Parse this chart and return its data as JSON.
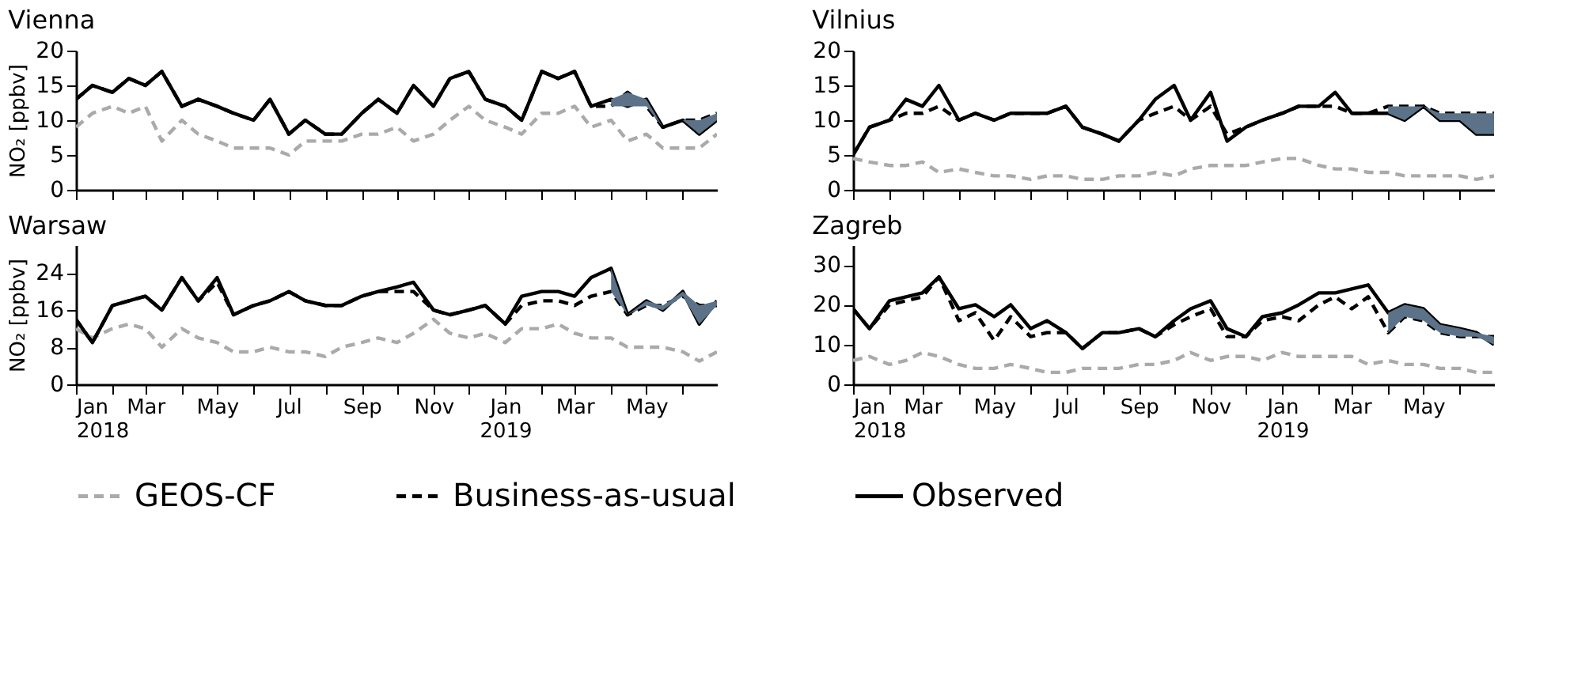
{
  "chart_data": [
    {
      "type": "line",
      "title": "Vienna",
      "ylabel": "NO₂ [ppbv]",
      "legend": "bottom",
      "grid": false,
      "tick_labels": "y",
      "x": [
        "2018-01-01",
        "2018-01-15",
        "2018-02-01",
        "2018-02-15",
        "2018-03-01",
        "2018-03-15",
        "2018-04-01",
        "2018-04-15",
        "2018-05-01",
        "2018-05-15",
        "2018-06-01",
        "2018-06-15",
        "2018-07-01",
        "2018-07-15",
        "2018-08-01",
        "2018-08-15",
        "2018-09-01",
        "2018-09-15",
        "2018-10-01",
        "2018-10-15",
        "2018-11-01",
        "2018-11-15",
        "2018-12-01",
        "2018-12-15",
        "2019-01-01",
        "2019-01-15",
        "2019-02-01",
        "2019-02-15",
        "2019-03-01",
        "2019-03-15",
        "2019-04-01",
        "2019-04-15",
        "2019-05-01",
        "2019-05-15",
        "2019-06-01",
        "2019-06-15",
        "2019-06-30"
      ],
      "xlim": [
        "2018-01-01",
        "2019-06-30"
      ],
      "xticks": [
        {
          "value": "2018-01-01",
          "label": "Jan 2018"
        },
        {
          "value": "2018-02-01",
          "label": null
        },
        {
          "value": "2018-03-01",
          "label": "Mar"
        },
        {
          "value": "2018-04-01",
          "label": null
        },
        {
          "value": "2018-05-01",
          "label": "May"
        },
        {
          "value": "2018-06-01",
          "label": null
        },
        {
          "value": "2018-07-01",
          "label": "Jul"
        },
        {
          "value": "2018-08-01",
          "label": null
        },
        {
          "value": "2018-09-01",
          "label": "Sep"
        },
        {
          "value": "2018-10-01",
          "label": null
        },
        {
          "value": "2018-11-01",
          "label": "Nov"
        },
        {
          "value": "2018-12-01",
          "label": null
        },
        {
          "value": "2019-01-01",
          "label": "Jan 2019"
        },
        {
          "value": "2019-02-01",
          "label": null
        },
        {
          "value": "2019-03-01",
          "label": "Mar"
        },
        {
          "value": "2019-04-01",
          "label": null
        },
        {
          "value": "2019-05-01",
          "label": "May"
        },
        {
          "value": "2019-06-01",
          "label": null
        }
      ],
      "ylim": [
        0,
        20
      ],
      "yticks": [
        0,
        5,
        10,
        15,
        20
      ],
      "series": [
        {
          "name": "GEOS-CF",
          "color": "#aaaaaa",
          "line_style": "dashed",
          "values": [
            9,
            11,
            12,
            11,
            12,
            7,
            10,
            8,
            7,
            6,
            6,
            6,
            5,
            7,
            7,
            7,
            8,
            8,
            9,
            7,
            8,
            10,
            12,
            10,
            9,
            8,
            11,
            11,
            12,
            9,
            10,
            7,
            8,
            6,
            6,
            6,
            8
          ]
        },
        {
          "name": "Business-as-usual",
          "color": "#000000",
          "line_style": "dashed",
          "values": [
            13,
            15,
            14,
            16,
            15,
            17,
            12,
            13,
            12,
            11,
            10,
            13,
            8,
            10,
            8,
            8,
            11,
            13,
            11,
            15,
            12,
            16,
            17,
            13,
            12,
            10,
            17,
            16,
            17,
            12,
            12,
            14,
            12,
            9,
            10,
            10,
            11
          ]
        },
        {
          "name": "Observed",
          "color": "#000000",
          "line_style": "solid",
          "values": [
            13,
            15,
            14,
            16,
            15,
            17,
            12,
            13,
            12,
            11,
            10,
            13,
            8,
            10,
            8,
            8,
            11,
            13,
            11,
            15,
            12,
            16,
            17,
            13,
            12,
            10,
            17,
            16,
            17,
            12,
            13,
            12,
            13,
            9,
            10,
            8,
            10
          ],
          "lower": [
            null,
            null,
            null,
            null,
            null,
            null,
            null,
            null,
            null,
            null,
            null,
            null,
            null,
            null,
            null,
            null,
            null,
            null,
            null,
            null,
            null,
            null,
            null,
            null,
            null,
            null,
            null,
            null,
            null,
            null,
            12,
            12,
            12,
            9,
            10,
            8,
            10
          ],
          "upper": [
            null,
            null,
            null,
            null,
            null,
            null,
            null,
            null,
            null,
            null,
            null,
            null,
            null,
            null,
            null,
            null,
            null,
            null,
            null,
            null,
            null,
            null,
            null,
            null,
            null,
            null,
            null,
            null,
            null,
            null,
            13,
            14,
            13,
            9,
            10,
            10,
            11
          ]
        }
      ]
    },
    {
      "type": "line",
      "title": "Vilnius",
      "legend": "bottom",
      "grid": false,
      "tick_labels": "y",
      "x": [
        "2018-01-01",
        "2018-01-15",
        "2018-02-01",
        "2018-02-15",
        "2018-03-01",
        "2018-03-15",
        "2018-04-01",
        "2018-04-15",
        "2018-05-01",
        "2018-05-15",
        "2018-06-01",
        "2018-06-15",
        "2018-07-01",
        "2018-07-15",
        "2018-08-01",
        "2018-08-15",
        "2018-09-01",
        "2018-09-15",
        "2018-10-01",
        "2018-10-15",
        "2018-11-01",
        "2018-11-15",
        "2018-12-01",
        "2018-12-15",
        "2019-01-01",
        "2019-01-15",
        "2019-02-01",
        "2019-02-15",
        "2019-03-01",
        "2019-03-15",
        "2019-04-01",
        "2019-04-15",
        "2019-05-01",
        "2019-05-15",
        "2019-06-01",
        "2019-06-15",
        "2019-06-30"
      ],
      "xlim": [
        "2018-01-01",
        "2019-06-30"
      ],
      "xticks": [
        {
          "value": "2018-01-01",
          "label": "Jan 2018"
        },
        {
          "value": "2018-02-01",
          "label": null
        },
        {
          "value": "2018-03-01",
          "label": "Mar"
        },
        {
          "value": "2018-04-01",
          "label": null
        },
        {
          "value": "2018-05-01",
          "label": "May"
        },
        {
          "value": "2018-06-01",
          "label": null
        },
        {
          "value": "2018-07-01",
          "label": "Jul"
        },
        {
          "value": "2018-08-01",
          "label": null
        },
        {
          "value": "2018-09-01",
          "label": "Sep"
        },
        {
          "value": "2018-10-01",
          "label": null
        },
        {
          "value": "2018-11-01",
          "label": "Nov"
        },
        {
          "value": "2018-12-01",
          "label": null
        },
        {
          "value": "2019-01-01",
          "label": "Jan 2019"
        },
        {
          "value": "2019-02-01",
          "label": null
        },
        {
          "value": "2019-03-01",
          "label": "Mar"
        },
        {
          "value": "2019-04-01",
          "label": null
        },
        {
          "value": "2019-05-01",
          "label": "May"
        },
        {
          "value": "2019-06-01",
          "label": null
        }
      ],
      "ylim": [
        0,
        20
      ],
      "yticks": [
        0,
        5,
        10,
        15,
        20
      ],
      "series": [
        {
          "name": "GEOS-CF",
          "color": "#aaaaaa",
          "line_style": "dashed",
          "values": [
            4.5,
            4,
            3.5,
            3.5,
            4,
            2.5,
            3,
            2.5,
            2,
            2,
            1.5,
            2,
            2,
            1.5,
            1.5,
            2,
            2,
            2.5,
            2,
            3,
            3.5,
            3.5,
            3.5,
            4,
            4.5,
            4.5,
            3.5,
            3,
            3,
            2.5,
            2.5,
            2,
            2,
            2,
            2,
            1.5,
            2
          ]
        },
        {
          "name": "Business-as-usual",
          "color": "#000000",
          "line_style": "dashed",
          "values": [
            5,
            9,
            10,
            11,
            11,
            12,
            10,
            11,
            10,
            11,
            11,
            11,
            12,
            9,
            8,
            7,
            10,
            11,
            12,
            10,
            12,
            8,
            9,
            10,
            11,
            12,
            12,
            12,
            11,
            11,
            12,
            12,
            12,
            11,
            11,
            11,
            11
          ]
        },
        {
          "name": "Observed",
          "color": "#000000",
          "line_style": "solid",
          "values": [
            5,
            9,
            10,
            13,
            12,
            15,
            10,
            11,
            10,
            11,
            11,
            11,
            12,
            9,
            8,
            7,
            10,
            13,
            15,
            10,
            14,
            7,
            9,
            10,
            11,
            12,
            12,
            14,
            11,
            11,
            11,
            10,
            12,
            10,
            10,
            8,
            8
          ],
          "lower": [
            null,
            null,
            null,
            null,
            null,
            null,
            null,
            null,
            null,
            null,
            null,
            null,
            null,
            null,
            null,
            null,
            null,
            null,
            null,
            null,
            null,
            null,
            null,
            null,
            null,
            null,
            null,
            null,
            null,
            null,
            11,
            10,
            12,
            10,
            10,
            8,
            8
          ],
          "upper": [
            null,
            null,
            null,
            null,
            null,
            null,
            null,
            null,
            null,
            null,
            null,
            null,
            null,
            null,
            null,
            null,
            null,
            null,
            null,
            null,
            null,
            null,
            null,
            null,
            null,
            null,
            null,
            null,
            null,
            null,
            12,
            12,
            12,
            11,
            11,
            11,
            11
          ]
        }
      ]
    },
    {
      "type": "line",
      "title": "Warsaw",
      "ylabel": "NO₂ [ppbv]",
      "legend": "bottom",
      "grid": false,
      "x": [
        "2018-01-01",
        "2018-01-15",
        "2018-02-01",
        "2018-02-15",
        "2018-03-01",
        "2018-03-15",
        "2018-04-01",
        "2018-04-15",
        "2018-05-01",
        "2018-05-15",
        "2018-06-01",
        "2018-06-15",
        "2018-07-01",
        "2018-07-15",
        "2018-08-01",
        "2018-08-15",
        "2018-09-01",
        "2018-09-15",
        "2018-10-01",
        "2018-10-15",
        "2018-11-01",
        "2018-11-15",
        "2018-12-01",
        "2018-12-15",
        "2019-01-01",
        "2019-01-15",
        "2019-02-01",
        "2019-02-15",
        "2019-03-01",
        "2019-03-15",
        "2019-04-01",
        "2019-04-15",
        "2019-05-01",
        "2019-05-15",
        "2019-06-01",
        "2019-06-15",
        "2019-06-30"
      ],
      "xlim": [
        "2018-01-01",
        "2019-06-30"
      ],
      "xticks": [
        {
          "value": "2018-01-01",
          "label": "Jan 2018"
        },
        {
          "value": "2018-02-01",
          "label": null
        },
        {
          "value": "2018-03-01",
          "label": "Mar"
        },
        {
          "value": "2018-04-01",
          "label": null
        },
        {
          "value": "2018-05-01",
          "label": "May"
        },
        {
          "value": "2018-06-01",
          "label": null
        },
        {
          "value": "2018-07-01",
          "label": "Jul"
        },
        {
          "value": "2018-08-01",
          "label": null
        },
        {
          "value": "2018-09-01",
          "label": "Sep"
        },
        {
          "value": "2018-10-01",
          "label": null
        },
        {
          "value": "2018-11-01",
          "label": "Nov"
        },
        {
          "value": "2018-12-01",
          "label": null
        },
        {
          "value": "2019-01-01",
          "label": "Jan 2019"
        },
        {
          "value": "2019-02-01",
          "label": null
        },
        {
          "value": "2019-03-01",
          "label": "Mar"
        },
        {
          "value": "2019-04-01",
          "label": null
        },
        {
          "value": "2019-05-01",
          "label": "May"
        },
        {
          "value": "2019-06-01",
          "label": null
        }
      ],
      "ylim": [
        0,
        30
      ],
      "yticks": [
        0,
        8,
        16,
        24
      ],
      "series": [
        {
          "name": "GEOS-CF",
          "color": "#aaaaaa",
          "line_style": "dashed",
          "values": [
            12,
            10,
            12,
            13,
            12,
            8,
            12,
            10,
            9,
            7,
            7,
            8,
            7,
            7,
            6,
            8,
            9,
            10,
            9,
            11,
            14,
            11,
            10,
            11,
            9,
            12,
            12,
            13,
            11,
            10,
            10,
            8,
            8,
            8,
            7,
            5,
            7
          ]
        },
        {
          "name": "Business-as-usual",
          "color": "#000000",
          "line_style": "dashed",
          "values": [
            14,
            9,
            17,
            18,
            19,
            16,
            23,
            18,
            22,
            15,
            17,
            18,
            20,
            18,
            17,
            17,
            19,
            20,
            20,
            20,
            16,
            15,
            16,
            17,
            13,
            17,
            18,
            18,
            17,
            19,
            20,
            15,
            17,
            17,
            19,
            17,
            17
          ]
        },
        {
          "name": "Observed",
          "color": "#000000",
          "line_style": "solid",
          "values": [
            14,
            9,
            17,
            18,
            19,
            16,
            23,
            18,
            23,
            15,
            17,
            18,
            20,
            18,
            17,
            17,
            19,
            20,
            21,
            22,
            16,
            15,
            16,
            17,
            13,
            19,
            20,
            20,
            19,
            23,
            25,
            15,
            18,
            16,
            20,
            13,
            18
          ],
          "lower": [
            null,
            null,
            null,
            null,
            null,
            null,
            null,
            null,
            null,
            null,
            null,
            null,
            null,
            null,
            null,
            null,
            null,
            null,
            null,
            null,
            null,
            null,
            null,
            null,
            null,
            null,
            null,
            null,
            null,
            null,
            20,
            15,
            17,
            16,
            19,
            13,
            17
          ],
          "upper": [
            null,
            null,
            null,
            null,
            null,
            null,
            null,
            null,
            null,
            null,
            null,
            null,
            null,
            null,
            null,
            null,
            null,
            null,
            null,
            null,
            null,
            null,
            null,
            null,
            null,
            null,
            null,
            null,
            null,
            null,
            25,
            15,
            18,
            17,
            20,
            17,
            18
          ]
        }
      ]
    },
    {
      "type": "line",
      "title": "Zagreb",
      "legend": "bottom",
      "grid": false,
      "x": [
        "2018-01-01",
        "2018-01-15",
        "2018-02-01",
        "2018-02-15",
        "2018-03-01",
        "2018-03-15",
        "2018-04-01",
        "2018-04-15",
        "2018-05-01",
        "2018-05-15",
        "2018-06-01",
        "2018-06-15",
        "2018-07-01",
        "2018-07-15",
        "2018-08-01",
        "2018-08-15",
        "2018-09-01",
        "2018-09-15",
        "2018-10-01",
        "2018-10-15",
        "2018-11-01",
        "2018-11-15",
        "2018-12-01",
        "2018-12-15",
        "2019-01-01",
        "2019-01-15",
        "2019-02-01",
        "2019-02-15",
        "2019-03-01",
        "2019-03-15",
        "2019-04-01",
        "2019-04-15",
        "2019-05-01",
        "2019-05-15",
        "2019-06-01",
        "2019-06-15",
        "2019-06-30"
      ],
      "xlim": [
        "2018-01-01",
        "2019-06-30"
      ],
      "xticks": [
        {
          "value": "2018-01-01",
          "label": "Jan 2018"
        },
        {
          "value": "2018-02-01",
          "label": null
        },
        {
          "value": "2018-03-01",
          "label": "Mar"
        },
        {
          "value": "2018-04-01",
          "label": null
        },
        {
          "value": "2018-05-01",
          "label": "May"
        },
        {
          "value": "2018-06-01",
          "label": null
        },
        {
          "value": "2018-07-01",
          "label": "Jul"
        },
        {
          "value": "2018-08-01",
          "label": null
        },
        {
          "value": "2018-09-01",
          "label": "Sep"
        },
        {
          "value": "2018-10-01",
          "label": null
        },
        {
          "value": "2018-11-01",
          "label": "Nov"
        },
        {
          "value": "2018-12-01",
          "label": null
        },
        {
          "value": "2019-01-01",
          "label": "Jan 2019"
        },
        {
          "value": "2019-02-01",
          "label": null
        },
        {
          "value": "2019-03-01",
          "label": "Mar"
        },
        {
          "value": "2019-04-01",
          "label": null
        },
        {
          "value": "2019-05-01",
          "label": "May"
        },
        {
          "value": "2019-06-01",
          "label": null
        }
      ],
      "ylim": [
        0,
        35
      ],
      "yticks": [
        0,
        10,
        20,
        30
      ],
      "series": [
        {
          "name": "GEOS-CF",
          "color": "#aaaaaa",
          "line_style": "dashed",
          "values": [
            6,
            7,
            5,
            6,
            8,
            7,
            5,
            4,
            4,
            5,
            4,
            3,
            3,
            4,
            4,
            4,
            5,
            5,
            6,
            8,
            6,
            7,
            7,
            6,
            8,
            7,
            7,
            7,
            7,
            5,
            6,
            5,
            5,
            4,
            4,
            3,
            3
          ]
        },
        {
          "name": "Business-as-usual",
          "color": "#000000",
          "line_style": "dashed",
          "values": [
            19,
            14,
            20,
            21,
            22,
            27,
            16,
            18,
            11,
            17,
            12,
            13,
            13,
            9,
            13,
            13,
            14,
            12,
            15,
            17,
            19,
            12,
            12,
            16,
            17,
            16,
            20,
            22,
            19,
            22,
            13,
            17,
            16,
            13,
            12,
            12,
            12
          ]
        },
        {
          "name": "Observed",
          "color": "#000000",
          "line_style": "solid",
          "values": [
            19,
            14,
            21,
            22,
            23,
            27,
            19,
            20,
            17,
            20,
            14,
            16,
            13,
            9,
            13,
            13,
            14,
            12,
            16,
            19,
            21,
            14,
            12,
            17,
            18,
            20,
            23,
            23,
            24,
            25,
            18,
            20,
            19,
            15,
            14,
            13,
            10
          ],
          "lower": [
            null,
            null,
            null,
            null,
            null,
            null,
            null,
            null,
            null,
            null,
            null,
            null,
            null,
            null,
            null,
            null,
            null,
            null,
            null,
            null,
            null,
            null,
            null,
            null,
            null,
            null,
            null,
            null,
            null,
            null,
            13,
            17,
            16,
            13,
            12,
            12,
            10
          ],
          "upper": [
            null,
            null,
            null,
            null,
            null,
            null,
            null,
            null,
            null,
            null,
            null,
            null,
            null,
            null,
            null,
            null,
            null,
            null,
            null,
            null,
            null,
            null,
            null,
            null,
            null,
            null,
            null,
            null,
            null,
            null,
            18,
            20,
            19,
            15,
            14,
            13,
            12
          ]
        }
      ]
    }
  ]
}
